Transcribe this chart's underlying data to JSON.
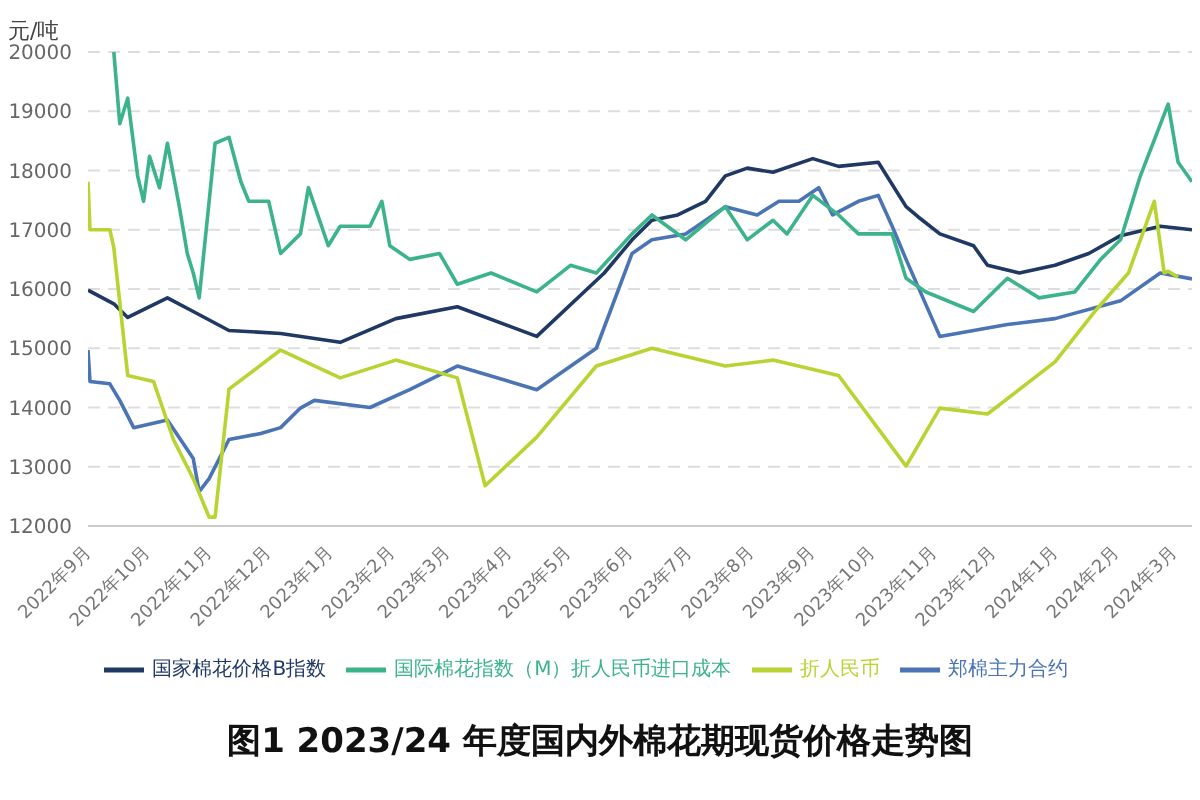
{
  "chart_data": {
    "type": "line",
    "title": "图1 2023/24 年度国内外棉花期现货价格走势图",
    "ylabel": "元/吨",
    "xlim": [
      "2022-09-01",
      "2024-03-10"
    ],
    "xticks": [
      {
        "value": "2022-09",
        "label": "2022年9月"
      },
      {
        "value": "2022-10",
        "label": "2022年10月"
      },
      {
        "value": "2022-11",
        "label": "2022年11月"
      },
      {
        "value": "2022-12",
        "label": "2022年12月"
      },
      {
        "value": "2023-01",
        "label": "2023年1月"
      },
      {
        "value": "2023-02",
        "label": "2023年2月"
      },
      {
        "value": "2023-03",
        "label": "2023年3月"
      },
      {
        "value": "2023-04",
        "label": "2023年4月"
      },
      {
        "value": "2023-05",
        "label": "2023年5月"
      },
      {
        "value": "2023-06",
        "label": "2023年6月"
      },
      {
        "value": "2023-07",
        "label": "2023年7月"
      },
      {
        "value": "2023-08",
        "label": "2023年8月"
      },
      {
        "value": "2023-09",
        "label": "2023年9月"
      },
      {
        "value": "2023-10",
        "label": "2023年10月"
      },
      {
        "value": "2023-11",
        "label": "2023年11月"
      },
      {
        "value": "2023-12",
        "label": "2023年12月"
      },
      {
        "value": "2024-01",
        "label": "2024年1月"
      },
      {
        "value": "2024-02",
        "label": "2024年2月"
      },
      {
        "value": "2024-03",
        "label": "2024年3月"
      }
    ],
    "ylim": [
      12000,
      20000
    ],
    "yticks": [
      12000,
      13000,
      14000,
      15000,
      16000,
      17000,
      18000,
      19000,
      20000
    ],
    "grid": "y",
    "legend": "bottom",
    "series": [
      {
        "name": "国家棉花价格B指数",
        "color": "#1f3864",
        "x": [
          "2022-09-01",
          "2022-09-14",
          "2022-09-21",
          "2022-10-11",
          "2022-10-24",
          "2022-11-11",
          "2022-12-07",
          "2023-01-06",
          "2023-02-03",
          "2023-03-06",
          "2023-04-15",
          "2023-05-19",
          "2023-06-02",
          "2023-06-12",
          "2023-06-25",
          "2023-07-09",
          "2023-07-19",
          "2023-07-30",
          "2023-08-12",
          "2023-09-01",
          "2023-09-14",
          "2023-10-04",
          "2023-10-18",
          "2023-10-24",
          "2023-11-04",
          "2023-11-21",
          "2023-11-28",
          "2023-12-14",
          "2024-01-01",
          "2024-01-18",
          "2024-02-03",
          "2024-02-23",
          "2024-03-10"
        ],
        "values": [
          15980,
          15750,
          15520,
          15850,
          15620,
          15300,
          15250,
          15100,
          15500,
          15700,
          15200,
          16270,
          16830,
          17160,
          17250,
          17480,
          17910,
          18040,
          17970,
          18200,
          18070,
          18140,
          17390,
          17220,
          16930,
          16730,
          16400,
          16270,
          16400,
          16600,
          16900,
          17060,
          17000
        ]
      },
      {
        "name": "郑棉主力合约",
        "color": "#4a74b4",
        "x": [
          "2022-09-01",
          "2022-09-02",
          "2022-09-12",
          "2022-09-17",
          "2022-09-24",
          "2022-10-11",
          "2022-10-24",
          "2022-10-27",
          "2022-11-01",
          "2022-11-11",
          "2022-11-27",
          "2022-12-07",
          "2022-12-17",
          "2022-12-24",
          "2023-01-21",
          "2023-02-10",
          "2023-03-06",
          "2023-04-15",
          "2023-05-15",
          "2023-06-02",
          "2023-06-12",
          "2023-06-29",
          "2023-07-19",
          "2023-08-04",
          "2023-08-15",
          "2023-08-25",
          "2023-09-04",
          "2023-09-11",
          "2023-09-24",
          "2023-10-04",
          "2023-10-11",
          "2023-10-18",
          "2023-11-04",
          "2023-12-08",
          "2024-01-01",
          "2024-02-03",
          "2024-02-23",
          "2024-03-10"
        ],
        "values": [
          14970,
          14440,
          14400,
          14120,
          13660,
          13790,
          13140,
          12580,
          12800,
          13460,
          13560,
          13660,
          13990,
          14120,
          14000,
          14300,
          14700,
          14300,
          15000,
          16600,
          16830,
          16930,
          17390,
          17250,
          17480,
          17480,
          17710,
          17250,
          17480,
          17580,
          17060,
          16500,
          15200,
          15400,
          15500,
          15800,
          16270,
          16170
        ]
      },
      {
        "name": "国际棉花指数（M）折人民币进口成本",
        "color": "#3cb38a",
        "x": [
          "2022-09-14",
          "2022-09-17",
          "2022-09-21",
          "2022-09-26",
          "2022-09-29",
          "2022-10-02",
          "2022-10-07",
          "2022-10-11",
          "2022-10-17",
          "2022-10-21",
          "2022-10-24",
          "2022-10-27",
          "2022-11-01",
          "2022-11-04",
          "2022-11-11",
          "2022-11-17",
          "2022-11-21",
          "2022-12-01",
          "2022-12-07",
          "2022-12-17",
          "2022-12-21",
          "2022-12-31",
          "2023-01-06",
          "2023-01-21",
          "2023-01-27",
          "2023-01-31",
          "2023-02-10",
          "2023-02-25",
          "2023-03-06",
          "2023-03-23",
          "2023-04-15",
          "2023-05-02",
          "2023-05-15",
          "2023-06-02",
          "2023-06-12",
          "2023-06-29",
          "2023-07-19",
          "2023-07-30",
          "2023-08-12",
          "2023-08-19",
          "2023-09-01",
          "2023-09-14",
          "2023-09-24",
          "2023-10-11",
          "2023-10-18",
          "2023-10-28",
          "2023-11-21",
          "2023-12-08",
          "2023-12-24",
          "2024-01-11",
          "2024-01-24",
          "2024-02-03",
          "2024-02-13",
          "2024-02-27",
          "2024-03-03",
          "2024-03-10"
        ],
        "values": [
          20000,
          18790,
          19220,
          17910,
          17480,
          18240,
          17710,
          18460,
          17390,
          16600,
          16270,
          15850,
          17480,
          18460,
          18560,
          17810,
          17480,
          17480,
          16600,
          16930,
          17710,
          16730,
          17060,
          17060,
          17480,
          16730,
          16500,
          16600,
          16080,
          16270,
          15950,
          16400,
          16270,
          16930,
          17250,
          16830,
          17390,
          16830,
          17160,
          16930,
          17580,
          17250,
          16930,
          16930,
          16180,
          15950,
          15620,
          16180,
          15850,
          15950,
          16500,
          16830,
          17910,
          19120,
          18140,
          17810
        ]
      },
      {
        "name": "折人民币",
        "color": "#b8d432",
        "x": [
          "2022-09-01",
          "2022-09-02",
          "2022-09-12",
          "2022-09-14",
          "2022-09-21",
          "2022-10-04",
          "2022-10-14",
          "2022-10-24",
          "2022-11-01",
          "2022-11-04",
          "2022-11-11",
          "2022-12-07",
          "2023-01-06",
          "2023-02-03",
          "2023-03-06",
          "2023-03-20",
          "2023-04-15",
          "2023-05-15",
          "2023-06-12",
          "2023-07-19",
          "2023-08-12",
          "2023-09-14",
          "2023-10-18",
          "2023-11-04",
          "2023-11-28",
          "2024-01-01",
          "2024-01-21",
          "2024-02-07",
          "2024-02-20",
          "2024-02-25",
          "2024-02-27",
          "2024-03-03"
        ],
        "values": [
          17810,
          17000,
          17000,
          16700,
          14540,
          14440,
          13460,
          12800,
          12150,
          12150,
          14310,
          14970,
          14500,
          14800,
          14500,
          12680,
          13500,
          14700,
          15000,
          14700,
          14800,
          14540,
          13010,
          13990,
          13890,
          14770,
          15620,
          16270,
          17480,
          16270,
          16300,
          16200
        ]
      }
    ]
  }
}
